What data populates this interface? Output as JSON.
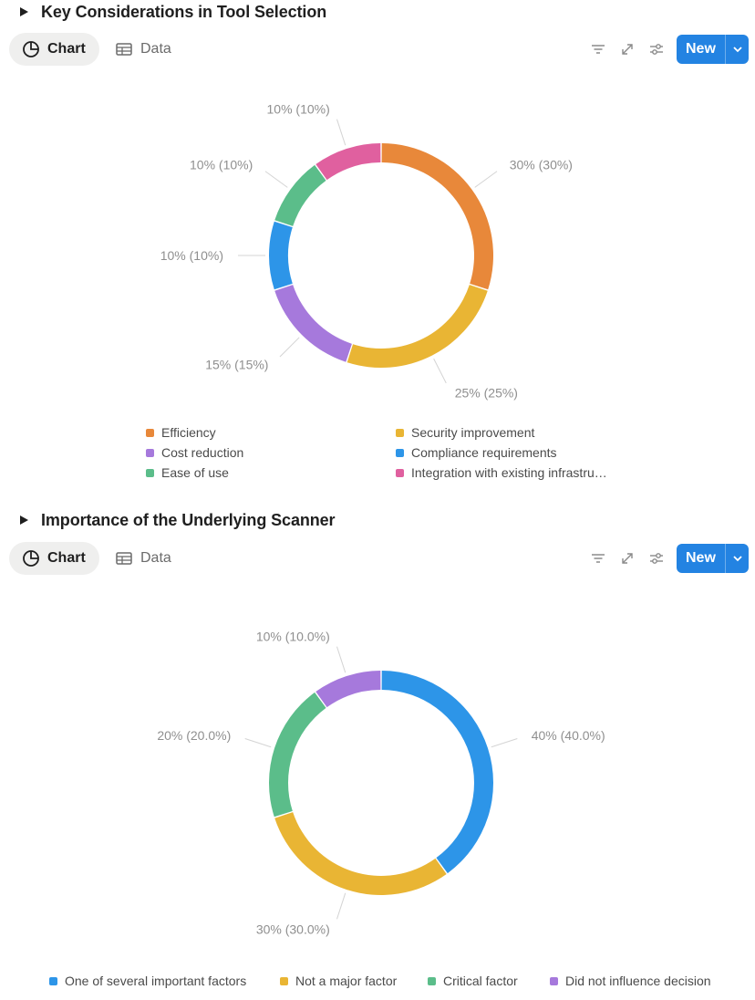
{
  "toolbar": {
    "chart_tab": "Chart",
    "data_tab": "Data",
    "new_label": "New"
  },
  "chart_data": [
    {
      "type": "pie",
      "title": "Key Considerations in Tool Selection",
      "slices": [
        {
          "name": "Efficiency",
          "value": 30,
          "label": "30% (30%)",
          "color": "#e8883a"
        },
        {
          "name": "Security improvement",
          "value": 25,
          "label": "25% (25%)",
          "color": "#e9b534"
        },
        {
          "name": "Cost reduction",
          "value": 15,
          "label": "15% (15%)",
          "color": "#a679dc"
        },
        {
          "name": "Compliance requirements",
          "value": 10,
          "label": "10% (10%)",
          "color": "#2d95e8"
        },
        {
          "name": "Ease of use",
          "value": 10,
          "label": "10% (10%)",
          "color": "#5bbd8a"
        },
        {
          "name": "Integration with existing infrastru…",
          "value": 10,
          "label": "10% (10%)",
          "color": "#e0609f"
        }
      ],
      "legend": [
        {
          "name": "Efficiency",
          "color": "#e8883a"
        },
        {
          "name": "Security improvement",
          "color": "#e9b534"
        },
        {
          "name": "Cost reduction",
          "color": "#a679dc"
        },
        {
          "name": "Compliance requirements",
          "color": "#2d95e8"
        },
        {
          "name": "Ease of use",
          "color": "#5bbd8a"
        },
        {
          "name": "Integration with existing infrastru…",
          "color": "#e0609f"
        }
      ]
    },
    {
      "type": "pie",
      "title": "Importance of the Underlying Scanner",
      "slices": [
        {
          "name": "One of several important factors",
          "value": 40,
          "label": "40% (40.0%)",
          "color": "#2d95e8"
        },
        {
          "name": "Not a major factor",
          "value": 30,
          "label": "30% (30.0%)",
          "color": "#e9b534"
        },
        {
          "name": "Critical factor",
          "value": 20,
          "label": "20% (20.0%)",
          "color": "#5bbd8a"
        },
        {
          "name": "Did not influence decision",
          "value": 10,
          "label": "10% (10.0%)",
          "color": "#a679dc"
        }
      ],
      "legend": [
        {
          "name": "One of several important factors",
          "color": "#2d95e8"
        },
        {
          "name": "Not a major factor",
          "color": "#e9b534"
        },
        {
          "name": "Critical factor",
          "color": "#5bbd8a"
        },
        {
          "name": "Did not influence decision",
          "color": "#a679dc"
        }
      ]
    }
  ]
}
